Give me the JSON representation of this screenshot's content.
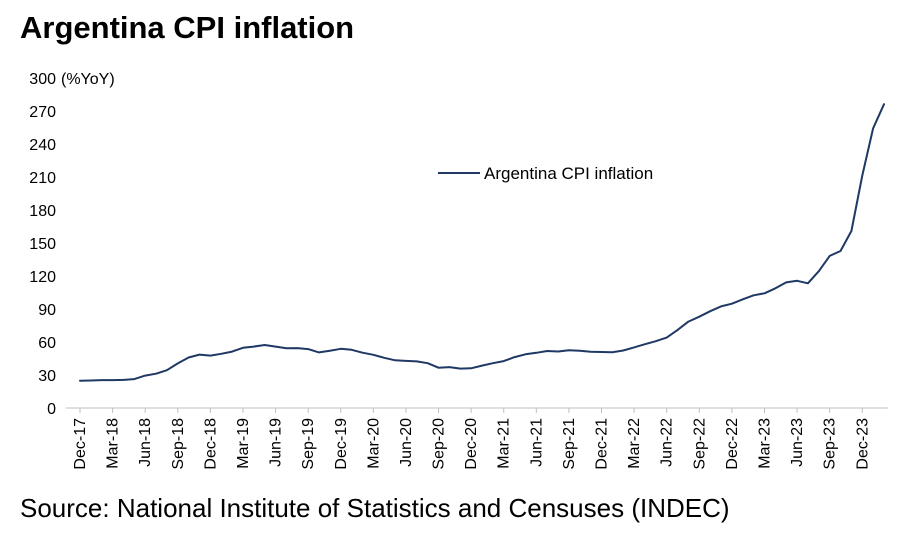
{
  "title": "Argentina CPI inflation",
  "source": "Source: National Institute of Statistics and Censuses (INDEC)",
  "chart_data": {
    "type": "line",
    "title": "Argentina CPI inflation",
    "ylabel": "(%YoY)",
    "xlabel": "",
    "ylim": [
      0,
      300
    ],
    "yticks": [
      0,
      30,
      60,
      90,
      120,
      150,
      180,
      210,
      240,
      270,
      300
    ],
    "xtick_labels": [
      "Dec-17",
      "Mar-18",
      "Jun-18",
      "Sep-18",
      "Dec-18",
      "Mar-19",
      "Jun-19",
      "Sep-19",
      "Dec-19",
      "Mar-20",
      "Jun-20",
      "Sep-20",
      "Dec-20",
      "Mar-21",
      "Jun-21",
      "Sep-21",
      "Dec-21",
      "Mar-22",
      "Jun-22",
      "Sep-22",
      "Dec-22",
      "Mar-23",
      "Jun-23",
      "Sep-23",
      "Dec-23"
    ],
    "grid": false,
    "legend": "top-center",
    "line_color": "#1f3864",
    "series": [
      {
        "name": "Argentina CPI inflation",
        "x": [
          "Dec-17",
          "Jan-18",
          "Feb-18",
          "Mar-18",
          "Apr-18",
          "May-18",
          "Jun-18",
          "Jul-18",
          "Aug-18",
          "Sep-18",
          "Oct-18",
          "Nov-18",
          "Dec-18",
          "Jan-19",
          "Feb-19",
          "Mar-19",
          "Apr-19",
          "May-19",
          "Jun-19",
          "Jul-19",
          "Aug-19",
          "Sep-19",
          "Oct-19",
          "Nov-19",
          "Dec-19",
          "Jan-20",
          "Feb-20",
          "Mar-20",
          "Apr-20",
          "May-20",
          "Jun-20",
          "Jul-20",
          "Aug-20",
          "Sep-20",
          "Oct-20",
          "Nov-20",
          "Dec-20",
          "Jan-21",
          "Feb-21",
          "Mar-21",
          "Apr-21",
          "May-21",
          "Jun-21",
          "Jul-21",
          "Aug-21",
          "Sep-21",
          "Oct-21",
          "Nov-21",
          "Dec-21",
          "Jan-22",
          "Feb-22",
          "Mar-22",
          "Apr-22",
          "May-22",
          "Jun-22",
          "Jul-22",
          "Aug-22",
          "Sep-22",
          "Oct-22",
          "Nov-22",
          "Dec-22",
          "Jan-23",
          "Feb-23",
          "Mar-23",
          "Apr-23",
          "May-23",
          "Jun-23",
          "Jul-23",
          "Aug-23",
          "Sep-23",
          "Oct-23",
          "Nov-23",
          "Dec-23",
          "Jan-24",
          "Feb-24"
        ],
        "values": [
          24.8,
          25.0,
          25.4,
          25.4,
          25.5,
          26.3,
          29.5,
          31.2,
          34.4,
          40.5,
          45.9,
          48.5,
          47.6,
          49.3,
          51.3,
          54.7,
          55.8,
          57.3,
          55.8,
          54.4,
          54.5,
          53.5,
          50.5,
          52.1,
          53.8,
          52.9,
          50.3,
          48.4,
          45.6,
          43.4,
          42.8,
          42.4,
          40.7,
          36.6,
          37.2,
          35.8,
          36.1,
          38.5,
          40.7,
          42.6,
          46.3,
          48.8,
          50.2,
          51.8,
          51.4,
          52.5,
          52.1,
          51.2,
          50.9,
          50.7,
          52.3,
          55.1,
          58.0,
          60.7,
          64.0,
          71.0,
          78.5,
          83.0,
          88.0,
          92.4,
          94.8,
          98.8,
          102.5,
          104.3,
          108.8,
          114.2,
          115.6,
          113.4,
          124.4,
          138.3,
          142.7,
          160.9,
          211.4,
          254.2,
          276.2
        ]
      }
    ]
  }
}
